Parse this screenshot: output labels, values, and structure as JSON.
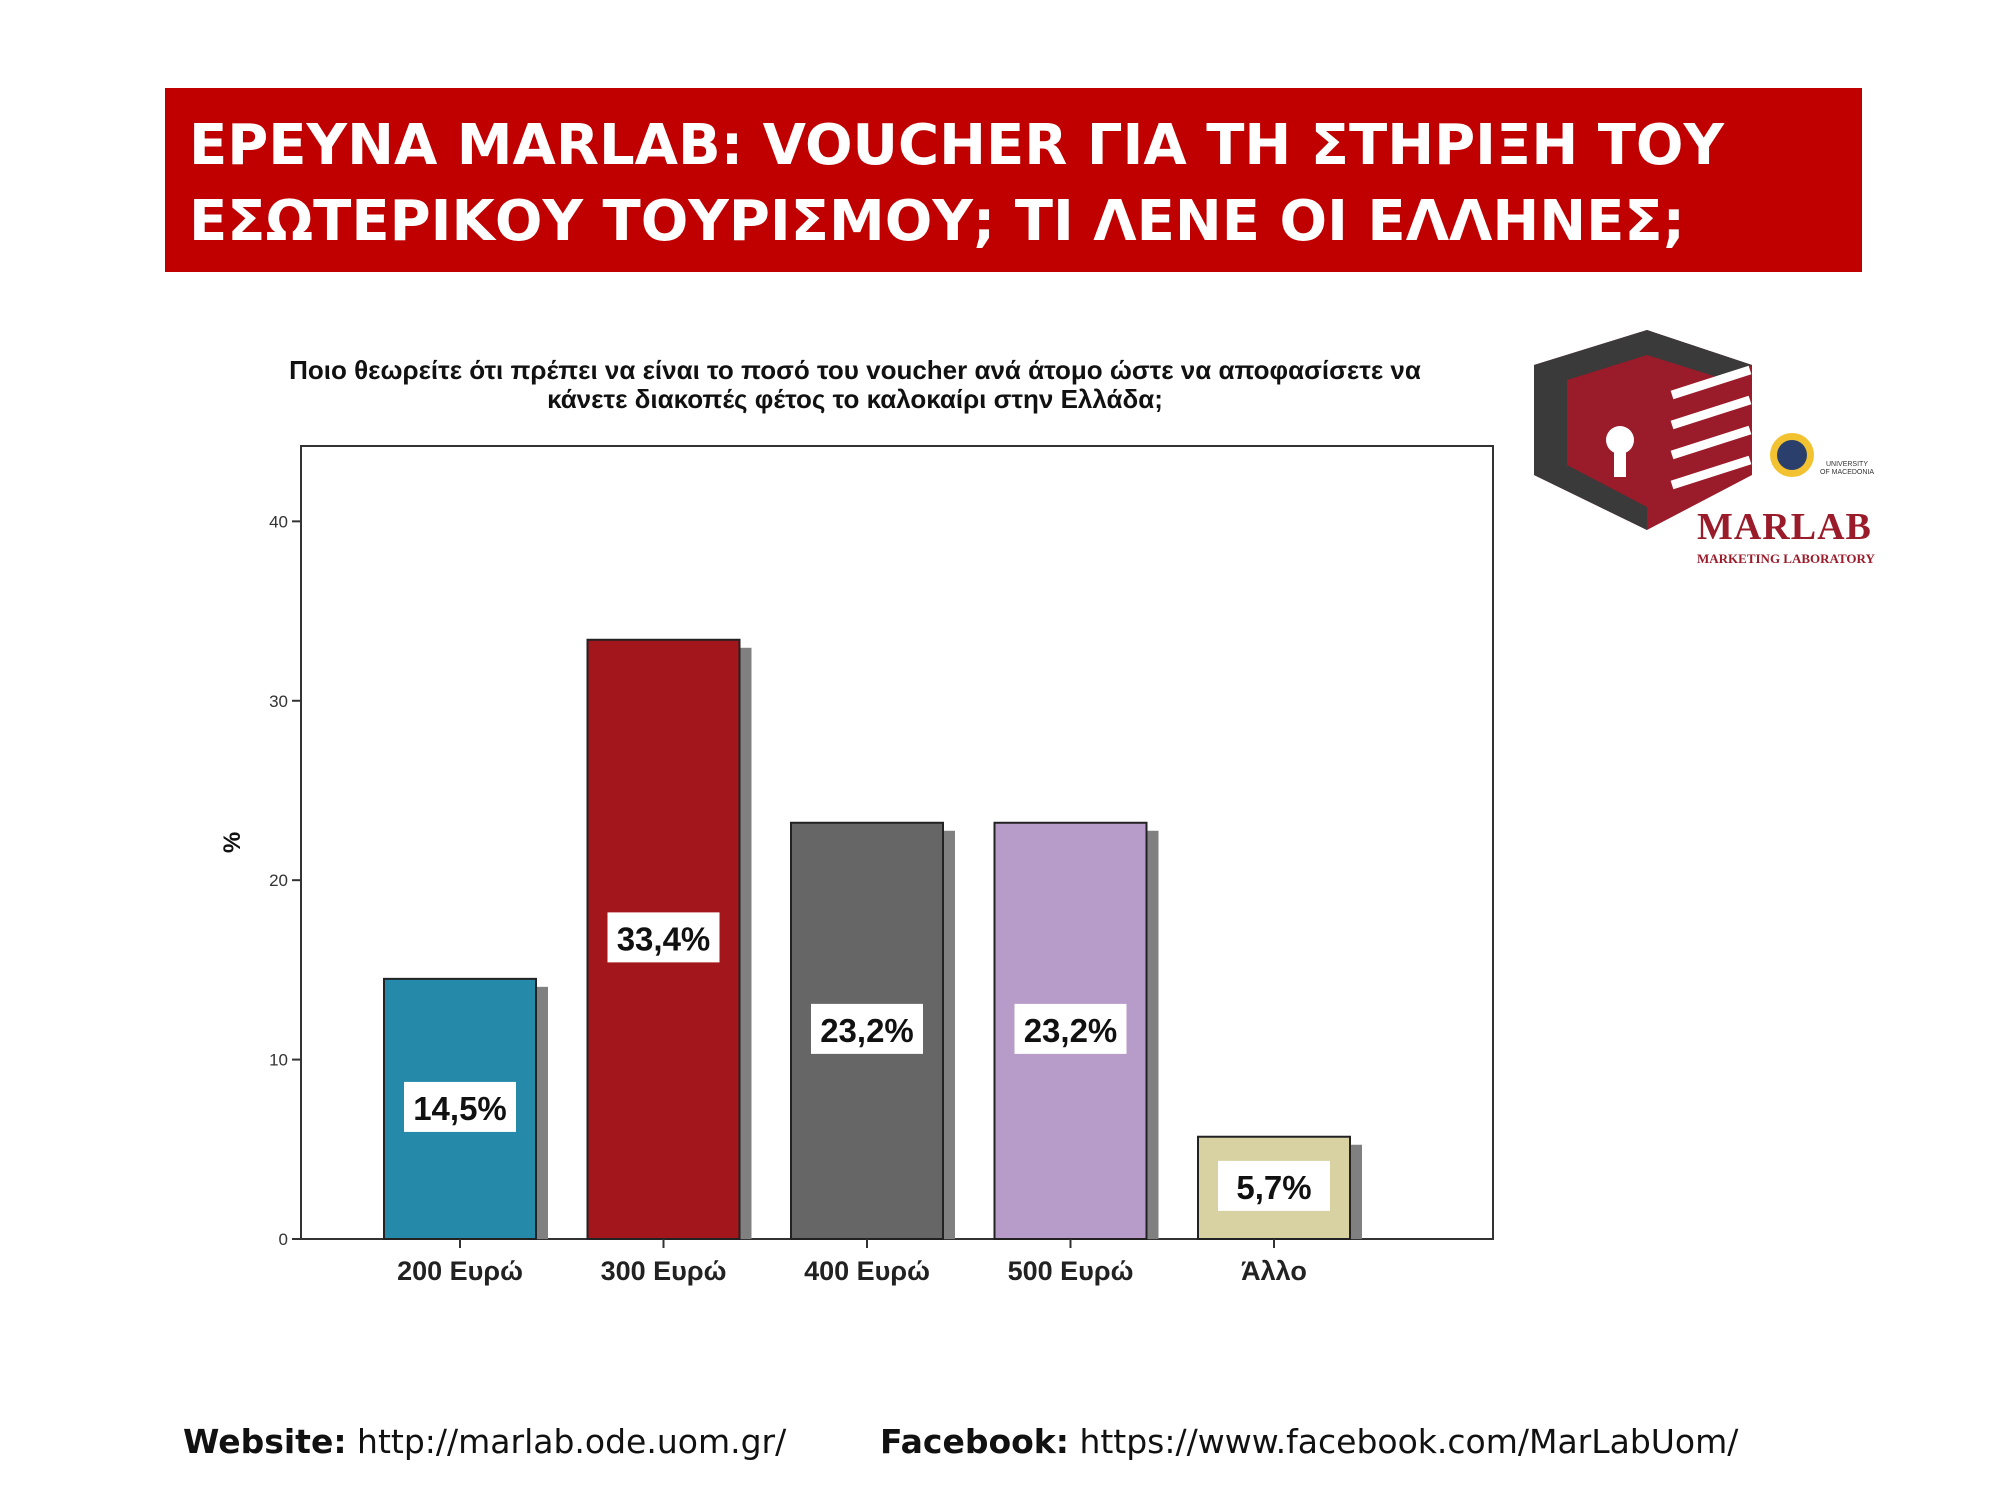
{
  "banner": {
    "line1": "ΕΡΕΥΝΑ MARLAB: VOUCHER ΓΙΑ ΤΗ ΣΤΗΡΙΞΗ ΤΟΥ",
    "line2": "ΕΣΩΤΕΡΙΚΟΥ ΤΟΥΡΙΣΜΟΥ; ΤΙ ΛΕΝΕ ΟΙ ΕΛΛΗΝΕΣ;"
  },
  "logo": {
    "name": "MARLAB",
    "subtitle": "MARKETING LABORATORY",
    "university_line1": "UNIVERSITY",
    "university_line2": "OF MACEDONIA",
    "colors": {
      "primary": "#9a1b2a",
      "dark": "#3a3a3a"
    }
  },
  "footer": {
    "website_label": "Website:",
    "website_url": "http://marlab.ode.uom.gr/",
    "facebook_label": "Facebook:",
    "facebook_url": "https://www.facebook.com/MarLabUom/"
  },
  "chart_data": {
    "type": "bar",
    "title_lines": [
      "Ποιο θεωρείτε ότι πρέπει να είναι το ποσό του voucher ανά άτομο ώστε να αποφασίσετε να",
      "κάνετε διακοπές φέτος το καλοκαίρι στην Ελλάδα;"
    ],
    "categories": [
      "200 Ευρώ",
      "300 Ευρώ",
      "400 Ευρώ",
      "500 Ευρώ",
      "Άλλο"
    ],
    "values": [
      14.5,
      33.4,
      23.2,
      23.2,
      5.7
    ],
    "value_labels": [
      "14,5%",
      "33,4%",
      "23,2%",
      "23,2%",
      "5,7%"
    ],
    "colors": [
      "#2589aa",
      "#a3161b",
      "#666666",
      "#b79bc8",
      "#d8d1a2"
    ],
    "ylabel": "%",
    "xlabel": "",
    "ylim": [
      0,
      44.2
    ],
    "yticks": [
      0,
      10,
      20,
      30,
      40
    ],
    "grid": false
  }
}
